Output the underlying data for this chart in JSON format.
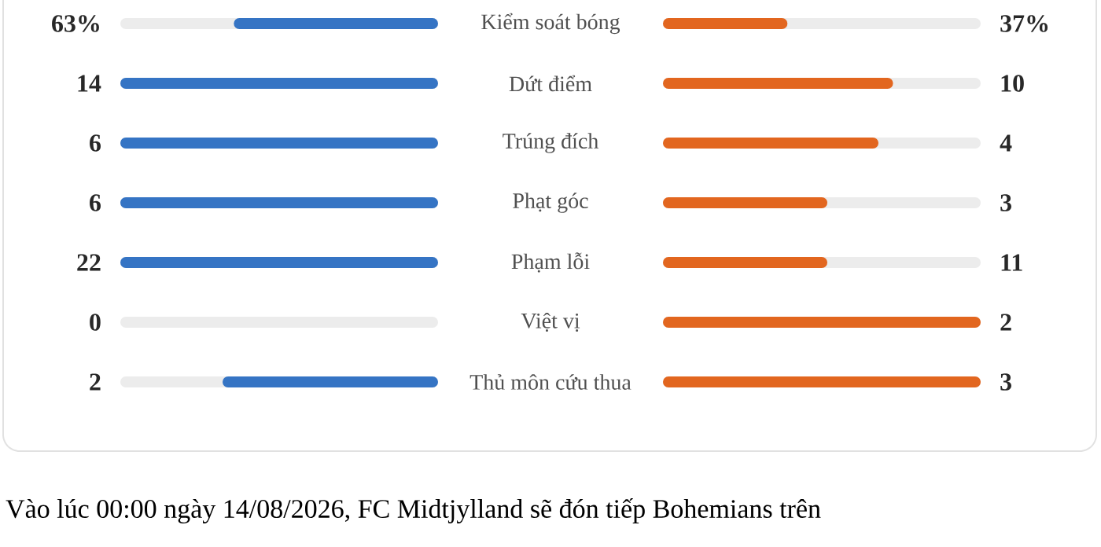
{
  "chart_data": {
    "type": "other",
    "categories": [
      "Kiểm soát bóng",
      "Dứt điểm",
      "Trúng đích",
      "Phạt góc",
      "Phạm lỗi",
      "Việt vị",
      "Thủ môn cứu thua"
    ],
    "series": [
      {
        "color": "#3574c4",
        "values": [
          63,
          14,
          6,
          6,
          22,
          0,
          2
        ],
        "value_labels": [
          "63%",
          "14",
          "6",
          "6",
          "22",
          "0",
          "2"
        ]
      },
      {
        "color": "#e2661f",
        "values": [
          37,
          10,
          4,
          3,
          11,
          2,
          3
        ],
        "value_labels": [
          "37%",
          "10",
          "4",
          "3",
          "11",
          "2",
          "3"
        ]
      }
    ],
    "annotations": [
      "Vào lúc 00:00 ngày 14/08/2026, FC Midtjylland sẽ đón tiếp Bohemians trên"
    ]
  }
}
